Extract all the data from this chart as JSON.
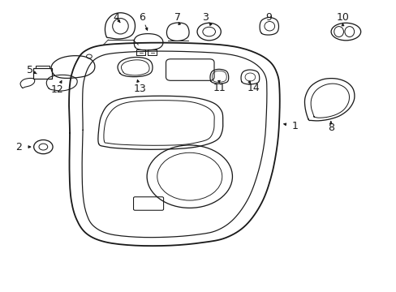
{
  "background_color": "#ffffff",
  "line_color": "#1a1a1a",
  "figsize": [
    4.89,
    3.6
  ],
  "dpi": 100,
  "label_fontsize": 9.0
}
